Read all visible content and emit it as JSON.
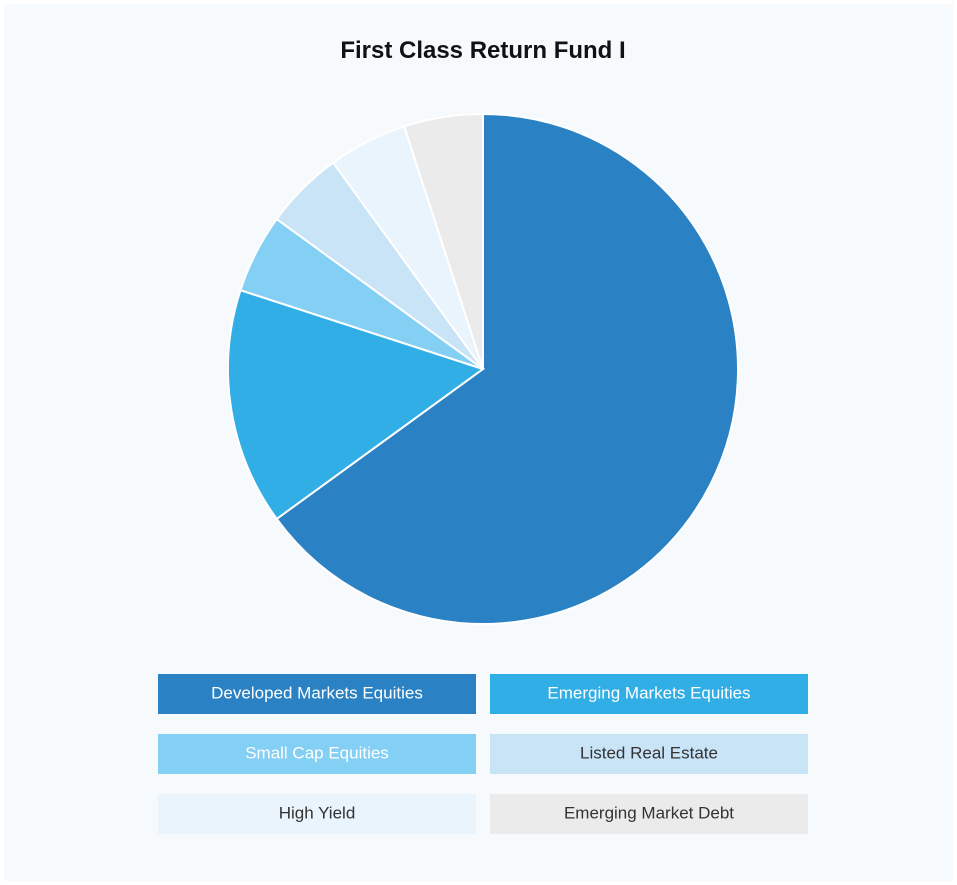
{
  "chart_data": {
    "type": "pie",
    "title": "First Class Return Fund I",
    "categories": [
      "Developed Markets Equities",
      "Emerging Markets Equities",
      "Small Cap Equities",
      "Listed Real Estate",
      "High Yield",
      "Emerging Market Debt"
    ],
    "values": [
      65,
      15,
      5,
      5,
      5,
      5
    ],
    "colors": [
      "#2a81c3",
      "#31aee6",
      "#84cff4",
      "#c9e4f7",
      "#e9f4fc",
      "#ebebeb"
    ],
    "legend": "bottom"
  }
}
